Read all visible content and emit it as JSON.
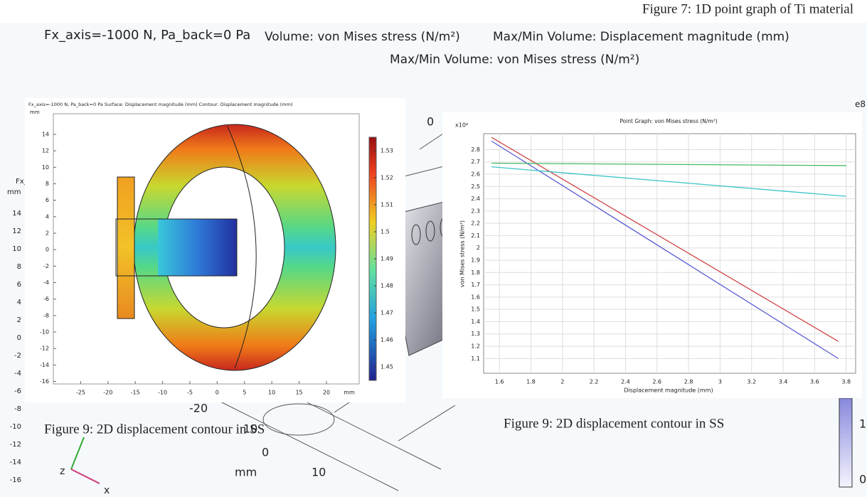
{
  "header": {
    "top_caption": "Figure 7: 1D point graph of Ti material",
    "title_1": "Fx_axis=-1000 N, Pa_back=0 Pa",
    "title_2": "Volume: von Mises stress (N/m²)",
    "title_3": "Max/Min Volume: Displacement magnitude (mm)",
    "title_4": "Max/Min Volume: von Mises stress (N/m²)"
  },
  "background": {
    "left_label": "Fx_a",
    "left_unit": "mm",
    "left_ticks": [
      14,
      12,
      10,
      8,
      6,
      4,
      2,
      0,
      -2,
      -4,
      -6,
      -8,
      -10,
      -12,
      -14,
      -16
    ],
    "axis_label_0": "0",
    "axis_label_minus20": "-20",
    "axis_label_10a": "10",
    "axis_label_0b": "0",
    "axis_unit": "mm",
    "axis_label_10b": "10",
    "scale_1": "1",
    "scale_0": "0",
    "exponent": "e8",
    "triad_z": "z",
    "triad_x": "x"
  },
  "captions": [
    "Figure 9: 2D displacement contour in SS",
    "Figure 9: 2D displacement contour in SS"
  ],
  "chart_data": [
    {
      "type": "contour",
      "title": "Fx_axis=-1000 N, Pa_back=0 Pa   Surface: Displacement magnitude (mm)   Contour: Displacement magnitude (mm)",
      "y_unit": "mm",
      "x_unit": "mm",
      "xlim": [
        -30,
        26
      ],
      "ylim": [
        -16.3,
        16.5
      ],
      "xticks": [
        -25,
        -20,
        -15,
        -10,
        -5,
        0,
        5,
        10,
        15,
        20
      ],
      "yticks": [
        14,
        12,
        10,
        8,
        6,
        4,
        2,
        0,
        -2,
        -4,
        -6,
        -8,
        -10,
        -12,
        -14,
        -16
      ],
      "colorbar_lim": [
        1.445,
        1.535
      ],
      "colorbar_ticks": [
        1.53,
        1.52,
        1.51,
        1.5,
        1.49,
        1.48,
        1.47,
        1.46,
        1.45
      ],
      "grid": false
    },
    {
      "type": "line",
      "title": "Point Graph: von Mises stress (N/m²)",
      "x_label": "Displacement magnitude (mm)",
      "y_label": "von Mises stress (N/m²)",
      "y_multiplier": "x10⁸",
      "xlim": [
        1.5,
        3.86
      ],
      "ylim": [
        0.98,
        2.93
      ],
      "xticks": [
        1.6,
        1.8,
        2,
        2.2,
        2.4,
        2.6,
        2.8,
        3,
        3.2,
        3.4,
        3.6,
        3.8
      ],
      "yticks": [
        1.1,
        1.2,
        1.3,
        1.4,
        1.5,
        1.6,
        1.7,
        1.8,
        1.9,
        2,
        2.1,
        2.2,
        2.3,
        2.4,
        2.5,
        2.6,
        2.7,
        2.8
      ],
      "grid": true,
      "series": [
        {
          "color": "#5a5ad6",
          "x": [
            1.55,
            3.75
          ],
          "values": [
            2.87,
            1.1
          ]
        },
        {
          "color": "#d04545",
          "x": [
            1.55,
            3.75
          ],
          "values": [
            2.9,
            1.24
          ]
        },
        {
          "color": "#45b865",
          "x": [
            1.55,
            3.8
          ],
          "values": [
            2.69,
            2.67
          ]
        },
        {
          "color": "#3cc4c8",
          "x": [
            1.55,
            3.8
          ],
          "values": [
            2.66,
            2.42
          ]
        }
      ]
    }
  ]
}
